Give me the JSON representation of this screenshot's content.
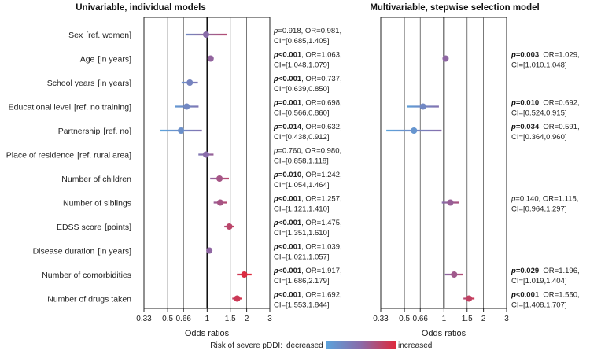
{
  "chart_data": {
    "type": "forest",
    "xlabel": "Odds ratios",
    "x_scale": "log",
    "xlim": [
      0.33,
      3
    ],
    "ticks": [
      "0.33",
      "0.5",
      "0.66",
      "1",
      "1.5",
      "2",
      "3"
    ],
    "tick_values": [
      0.33,
      0.5,
      0.66,
      1,
      1.5,
      2,
      3
    ],
    "reference_value": 1,
    "variables": [
      {
        "name": "Sex",
        "unit": "[ref. women]"
      },
      {
        "name": "Age",
        "unit": "[in years]"
      },
      {
        "name": "School years",
        "unit": "[in years]"
      },
      {
        "name": "Educational level",
        "unit": "[ref. no training]"
      },
      {
        "name": "Partnership",
        "unit": "[ref. no]"
      },
      {
        "name": "Place of residence",
        "unit": "[ref. rural area]"
      },
      {
        "name": "Number of children",
        "unit": ""
      },
      {
        "name": "Number of siblings",
        "unit": ""
      },
      {
        "name": "EDSS score",
        "unit": "[points]"
      },
      {
        "name": "Disease duration",
        "unit": "[in years]"
      },
      {
        "name": "Number of comorbidities",
        "unit": ""
      },
      {
        "name": "Number of drugs taken",
        "unit": ""
      }
    ],
    "panels": [
      {
        "title": "Univariable, individual models",
        "results": [
          {
            "or": 0.981,
            "lo": 0.685,
            "hi": 1.405,
            "p": "=0.918",
            "sig": false,
            "or_text": ", OR=0.981,",
            "ci_text": "CI=[0.685,1.405]"
          },
          {
            "or": 1.063,
            "lo": 1.048,
            "hi": 1.079,
            "p": "<0.001",
            "sig": true,
            "or_text": ", OR=1.063,",
            "ci_text": "CI=[1.048,1.079]"
          },
          {
            "or": 0.737,
            "lo": 0.639,
            "hi": 0.85,
            "p": "<0.001",
            "sig": true,
            "or_text": ", OR=0.737,",
            "ci_text": "CI=[0.639,0.850]"
          },
          {
            "or": 0.698,
            "lo": 0.566,
            "hi": 0.86,
            "p": "=0.001",
            "sig": true,
            "or_text": ", OR=0.698,",
            "ci_text": "CI=[0.566,0.860]"
          },
          {
            "or": 0.632,
            "lo": 0.438,
            "hi": 0.912,
            "p": "=0.014",
            "sig": true,
            "or_text": ", OR=0.632,",
            "ci_text": "CI=[0.438,0.912]"
          },
          {
            "or": 0.98,
            "lo": 0.858,
            "hi": 1.118,
            "p": "=0.760",
            "sig": false,
            "or_text": ", OR=0.980,",
            "ci_text": "CI=[0.858,1.118]"
          },
          {
            "or": 1.242,
            "lo": 1.054,
            "hi": 1.464,
            "p": "=0.010",
            "sig": true,
            "or_text": ", OR=1.242,",
            "ci_text": "CI=[1.054,1.464]"
          },
          {
            "or": 1.257,
            "lo": 1.121,
            "hi": 1.41,
            "p": "<0.001",
            "sig": true,
            "or_text": ", OR=1.257,",
            "ci_text": "CI=[1.121,1.410]"
          },
          {
            "or": 1.475,
            "lo": 1.351,
            "hi": 1.61,
            "p": "<0.001",
            "sig": true,
            "or_text": ", OR=1.475,",
            "ci_text": "CI=[1.351,1.610]"
          },
          {
            "or": 1.039,
            "lo": 1.021,
            "hi": 1.057,
            "p": "<0.001",
            "sig": true,
            "or_text": ", OR=1.039,",
            "ci_text": "CI=[1.021,1.057]"
          },
          {
            "or": 1.917,
            "lo": 1.686,
            "hi": 2.179,
            "p": "<0.001",
            "sig": true,
            "or_text": ", OR=1.917,",
            "ci_text": "CI=[1.686,2.179]"
          },
          {
            "or": 1.692,
            "lo": 1.553,
            "hi": 1.844,
            "p": "<0.001",
            "sig": true,
            "or_text": ", OR=1.692,",
            "ci_text": "CI=[1.553,1.844]"
          }
        ]
      },
      {
        "title": "Multivariable, stepwise selection model",
        "results": [
          null,
          {
            "or": 1.029,
            "lo": 1.01,
            "hi": 1.048,
            "p": "=0.003",
            "sig": true,
            "or_text": ", OR=1.029,",
            "ci_text": "CI=[1.010,1.048]"
          },
          null,
          {
            "or": 0.692,
            "lo": 0.524,
            "hi": 0.915,
            "p": "=0.010",
            "sig": true,
            "or_text": ", OR=0.692,",
            "ci_text": "CI=[0.524,0.915]"
          },
          {
            "or": 0.591,
            "lo": 0.364,
            "hi": 0.96,
            "p": "=0.034",
            "sig": true,
            "or_text": ", OR=0.591,",
            "ci_text": "CI=[0.364,0.960]"
          },
          null,
          null,
          {
            "or": 1.118,
            "lo": 0.964,
            "hi": 1.297,
            "p": "=0.140",
            "sig": false,
            "or_text": ", OR=1.118,",
            "ci_text": "CI=[0.964,1.297]"
          },
          null,
          null,
          {
            "or": 1.196,
            "lo": 1.019,
            "hi": 1.404,
            "p": "=0.029",
            "sig": true,
            "or_text": ", OR=1.196,",
            "ci_text": "CI=[1.019,1.404]"
          },
          {
            "or": 1.55,
            "lo": 1.408,
            "hi": 1.707,
            "p": "<0.001",
            "sig": true,
            "or_text": ", OR=1.550,",
            "ci_text": "CI=[1.408,1.707]"
          }
        ]
      }
    ],
    "legend": {
      "title": "Risk of severe pDDI:",
      "low_label": "decreased",
      "high_label": "increased",
      "colors": {
        "low": "#5ba3dc",
        "mid": "#8a6aa8",
        "high": "#e0283a"
      }
    }
  },
  "p_symbol": "p"
}
